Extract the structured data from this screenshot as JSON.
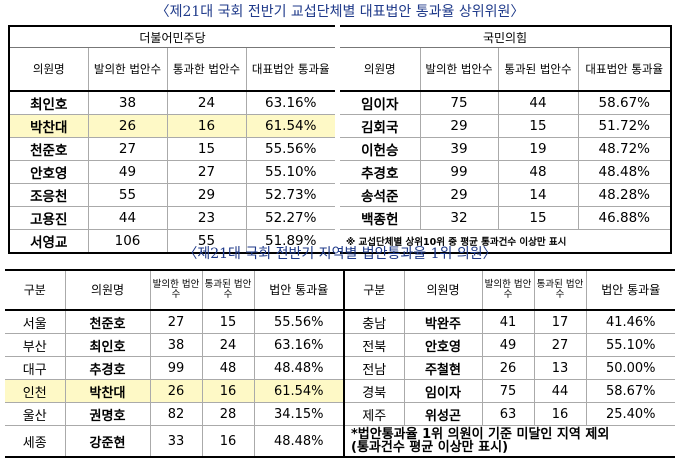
{
  "title1": "〈제21대 국회 전반기 교섭단체별 대표법안 통과율 상위위원〉",
  "title2": "〈제21대 국회 전반기 지역별 법안통과율 1위 의원〉",
  "left_table": {
    "group": "더불어민주당",
    "headers": [
      "의원명",
      "발의한 법안수",
      "통과한 법안수",
      "대표법안 통과율"
    ],
    "rows": [
      [
        "최인호",
        "38",
        "24",
        "63.16%"
      ],
      [
        "박찬대",
        "26",
        "16",
        "61.54%"
      ],
      [
        "천준호",
        "27",
        "15",
        "55.56%"
      ],
      [
        "안호영",
        "49",
        "27",
        "55.10%"
      ],
      [
        "조응천",
        "55",
        "29",
        "52.73%"
      ],
      [
        "고용진",
        "44",
        "23",
        "52.27%"
      ],
      [
        "서영교",
        "106",
        "55",
        "51.89%"
      ]
    ]
  },
  "right_table": {
    "group": "국민의힘",
    "headers": [
      "의원명",
      "발의한 법안수",
      "통과된 법안수",
      "대표법안 통과율"
    ],
    "rows": [
      [
        "임이자",
        "75",
        "44",
        "58.67%"
      ],
      [
        "김회국",
        "29",
        "15",
        "51.72%"
      ],
      [
        "이헌승",
        "39",
        "19",
        "48.72%"
      ],
      [
        "추경호",
        "99",
        "48",
        "48.48%"
      ],
      [
        "송석준",
        "29",
        "14",
        "48.28%"
      ],
      [
        "백종헌",
        "32",
        "15",
        "46.88%"
      ]
    ],
    "note": "※ 교섭단체별 상위10위 중 평균 통과건수 이상만 표시"
  },
  "bottom_table": {
    "headers": [
      "구분",
      "의원명",
      "발의한 법안수",
      "통과된 법안수",
      "법안 통과율",
      "구분",
      "의원명",
      "발의한 법안수",
      "통과된 법안수",
      "법안 통과율"
    ],
    "rows": [
      [
        "서울",
        "천준호",
        "27",
        "15",
        "55.56%",
        "충남",
        "박완주",
        "41",
        "17",
        "41.46%"
      ],
      [
        "부산",
        "최인호",
        "38",
        "24",
        "63.16%",
        "전북",
        "안호영",
        "49",
        "27",
        "55.10%"
      ],
      [
        "대구",
        "추경호",
        "99",
        "48",
        "48.48%",
        "전남",
        "주철현",
        "26",
        "13",
        "50.00%"
      ],
      [
        "인천",
        "박찬대",
        "26",
        "16",
        "61.54%",
        "경북",
        "임이자",
        "75",
        "44",
        "58.67%"
      ],
      [
        "울산",
        "권명호",
        "82",
        "28",
        "34.15%",
        "제주",
        "위성곤",
        "63",
        "16",
        "25.40%"
      ]
    ],
    "last_row": [
      "세종",
      "강준현",
      "33",
      "16",
      "48.48%"
    ],
    "note_line1": "*법안통과율 1위 의원이 기준 미달인 지역 제외",
    "note_line2": "(통과건수 평균 이상만 표시)"
  },
  "colors": {
    "title": "#1f3a8a",
    "highlight": "#fef9c6"
  }
}
